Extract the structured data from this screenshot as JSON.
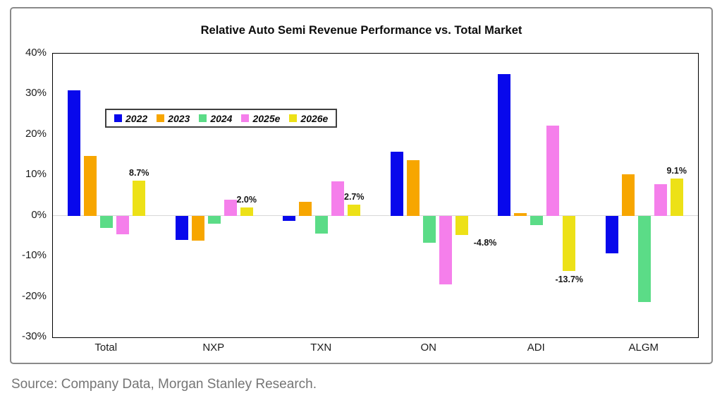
{
  "chart_data": {
    "type": "bar",
    "title": "Relative Auto Semi Revenue Performance vs. Total Market",
    "categories": [
      "Total",
      "NXP",
      "TXN",
      "ON",
      "ADI",
      "ALGM"
    ],
    "series": [
      {
        "name": "2022",
        "color": "#0808ec",
        "values": [
          31,
          -6,
          -1.3,
          15.8,
          35,
          -9.3
        ]
      },
      {
        "name": "2023",
        "color": "#f7a600",
        "values": [
          14.7,
          -6.2,
          3.5,
          13.7,
          0.6,
          10.3
        ]
      },
      {
        "name": "2024",
        "color": "#5bdc87",
        "values": [
          -3,
          -1.9,
          -4.4,
          -6.7,
          -2.3,
          -21.3
        ]
      },
      {
        "name": "2025e",
        "color": "#f57feb",
        "values": [
          -4.6,
          4,
          8.4,
          -17,
          22.3,
          7.8
        ]
      },
      {
        "name": "2026e",
        "color": "#ede117",
        "values": [
          8.7,
          2,
          2.7,
          -4.8,
          -13.7,
          9.1
        ]
      }
    ],
    "callouts": [
      {
        "category": "Total",
        "text": "8.7%",
        "placement": "above"
      },
      {
        "category": "NXP",
        "text": "2.0%",
        "placement": "above"
      },
      {
        "category": "TXN",
        "text": "2.7%",
        "placement": "above"
      },
      {
        "category": "ON",
        "text": "-4.8%",
        "placement": "right"
      },
      {
        "category": "ADI",
        "text": "-13.7%",
        "placement": "below"
      },
      {
        "category": "ALGM",
        "text": "9.1%",
        "placement": "above"
      }
    ],
    "ylim": [
      -30,
      40
    ],
    "ytick_labels": [
      "40%",
      "30%",
      "20%",
      "10%",
      "0%",
      "-10%",
      "-20%",
      "-30%"
    ],
    "xlabel": "",
    "ylabel": "",
    "legend_position": "top-left",
    "grid": "zero-line-only"
  },
  "source": {
    "text": "Source: Company Data, Morgan Stanley Research."
  }
}
